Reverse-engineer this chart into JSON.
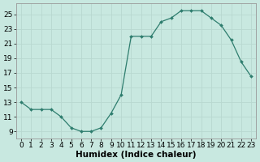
{
  "x": [
    0,
    1,
    2,
    3,
    4,
    5,
    6,
    7,
    8,
    9,
    10,
    11,
    12,
    13,
    14,
    15,
    16,
    17,
    18,
    19,
    20,
    21,
    22,
    23
  ],
  "y": [
    13,
    12,
    12,
    12,
    11,
    9.5,
    9,
    9,
    9.5,
    11.5,
    14,
    22,
    22,
    22,
    24,
    24.5,
    25.5,
    25.5,
    25.5,
    24.5,
    23.5,
    21.5,
    18.5,
    16.5
  ],
  "line_color": "#2e7d6e",
  "marker_color": "#2e7d6e",
  "bg_color": "#c8e8e0",
  "grid_color": "#b8d8d0",
  "xlabel": "Humidex (Indice chaleur)",
  "ylabel_ticks": [
    9,
    11,
    13,
    15,
    17,
    19,
    21,
    23,
    25
  ],
  "xlim": [
    -0.5,
    23.5
  ],
  "ylim": [
    8.0,
    26.5
  ],
  "xticks": [
    0,
    1,
    2,
    3,
    4,
    5,
    6,
    7,
    8,
    9,
    10,
    11,
    12,
    13,
    14,
    15,
    16,
    17,
    18,
    19,
    20,
    21,
    22,
    23
  ],
  "font_size": 6.5
}
